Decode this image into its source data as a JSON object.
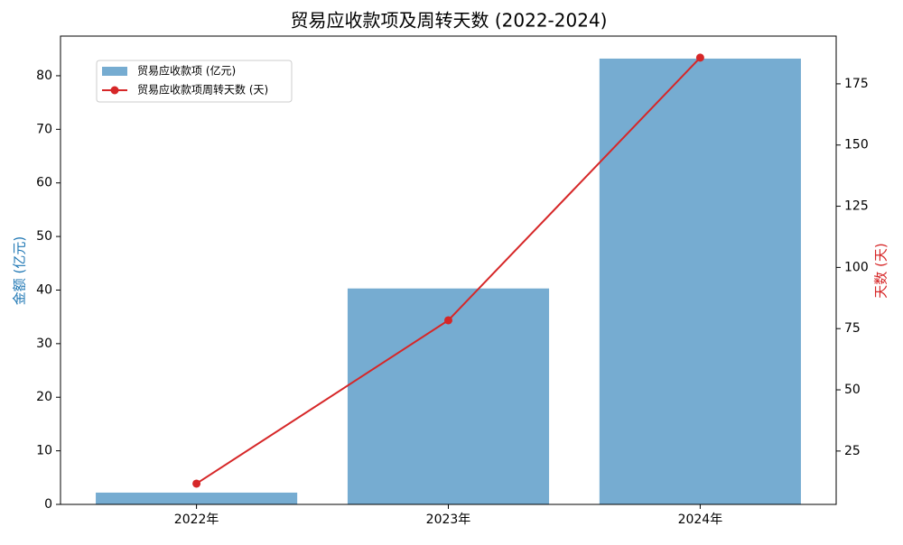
{
  "chart_data": {
    "type": "bar_line",
    "title": "贸易应收款项及周转天数 (2022-2024)",
    "y_label": "金额 (亿元)",
    "y2_label": "天数 (天)",
    "categories": [
      "2022年",
      "2023年",
      "2024年"
    ],
    "series": [
      {
        "name": "贸易应收款项 (亿元)",
        "type": "bar",
        "color": "#76acd1",
        "values": [
          2.2,
          40.3,
          83.2
        ]
      },
      {
        "name": "贸易应收款项周转天数 (天)",
        "type": "line",
        "color": "#d62728",
        "axis": "y2",
        "values": [
          11.7,
          78.4,
          185.7
        ]
      }
    ],
    "ylim": [
      0,
      87.4
    ],
    "yticks": [
      0,
      10,
      20,
      30,
      40,
      50,
      60,
      70,
      80
    ],
    "y2lim": [
      3.2,
      194.5
    ],
    "y2ticks": [
      25,
      50,
      75,
      100,
      125,
      150,
      175
    ],
    "legend": "upper left",
    "left_axis_color": "#1f77b4",
    "right_axis_color": "#d62728"
  }
}
